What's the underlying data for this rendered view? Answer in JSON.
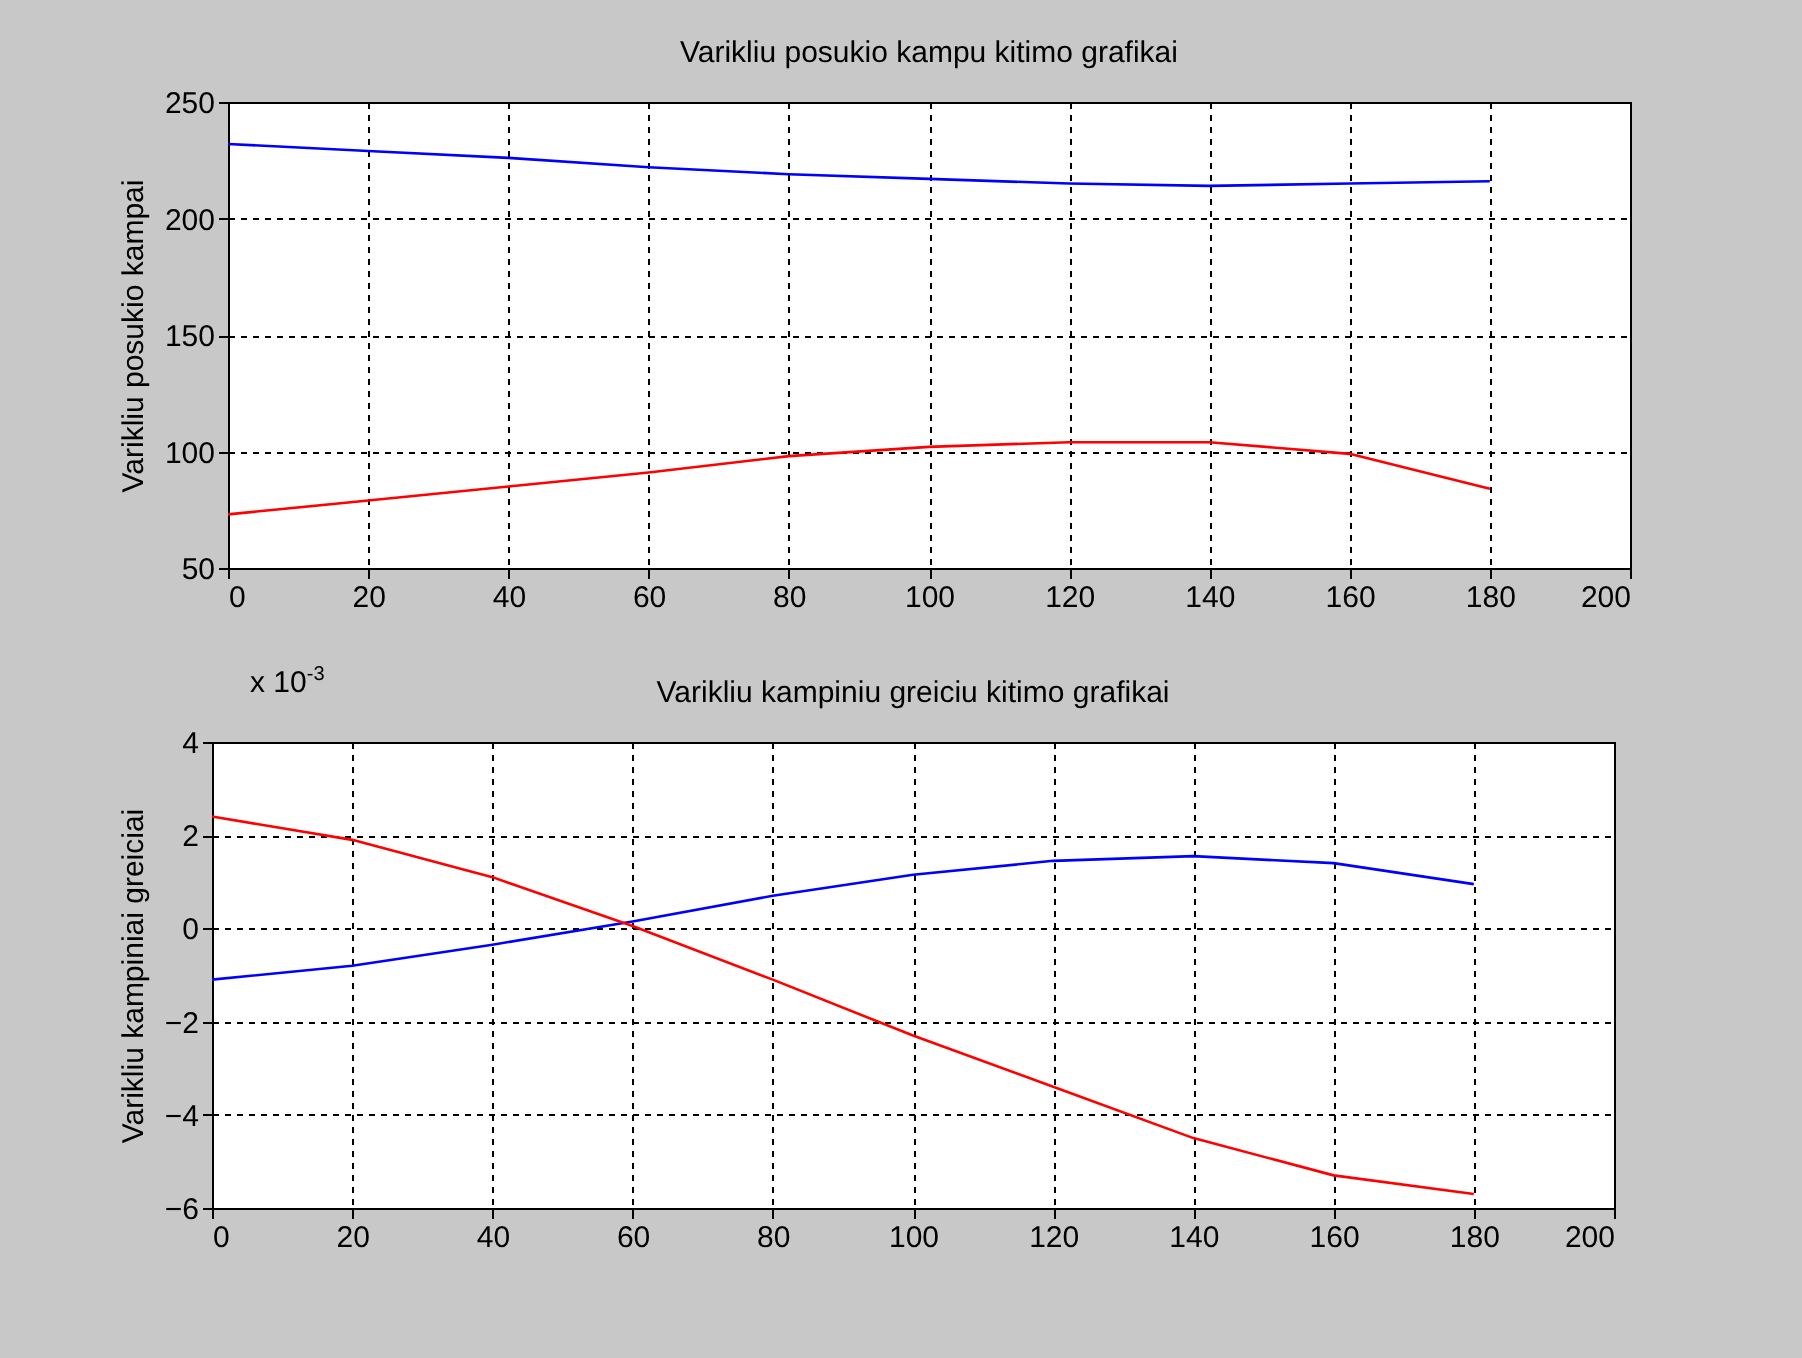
{
  "chart_data": [
    {
      "type": "line",
      "title": "Varikliu posukio kampu kitimo grafikai",
      "ylabel": "Varikliu posukio kampai",
      "x": [
        0,
        20,
        40,
        60,
        80,
        100,
        120,
        140,
        160,
        180
      ],
      "series": [
        {
          "color": "#0000ff",
          "values": [
            232,
            229,
            226,
            222,
            219,
            217,
            215,
            214,
            215,
            216
          ]
        },
        {
          "color": "#ff0000",
          "values": [
            73,
            79,
            85,
            91,
            98,
            102,
            104,
            104,
            99,
            84
          ]
        }
      ],
      "xlim": [
        0,
        200
      ],
      "xticks": [
        0,
        20,
        40,
        60,
        80,
        100,
        120,
        140,
        160,
        180,
        200
      ],
      "ylim": [
        50,
        250
      ],
      "yticks": [
        50,
        100,
        150,
        200,
        250
      ],
      "grid": true
    },
    {
      "type": "line",
      "title": "Varikliu kampiniu greiciu kitimo grafikai",
      "ylabel": "Varikliu kampiniai greiciai",
      "x": [
        0,
        20,
        40,
        60,
        80,
        100,
        120,
        140,
        160,
        180
      ],
      "series": [
        {
          "color": "#0000ff",
          "values": [
            -1.1,
            -0.8,
            -0.35,
            0.15,
            0.7,
            1.15,
            1.45,
            1.55,
            1.4,
            0.95
          ]
        },
        {
          "color": "#ff0000",
          "values": [
            2.4,
            1.9,
            1.1,
            0.05,
            -1.1,
            -2.3,
            -3.4,
            -4.5,
            -5.3,
            -5.7
          ]
        }
      ],
      "xlim": [
        0,
        200
      ],
      "xticks": [
        0,
        20,
        40,
        60,
        80,
        100,
        120,
        140,
        160,
        180,
        200
      ],
      "ylim": [
        -6,
        4
      ],
      "yticks": [
        -6,
        -4,
        -2,
        0,
        2,
        4
      ],
      "grid": true,
      "annotations": [
        "x 10$^{-3}$"
      ]
    }
  ]
}
